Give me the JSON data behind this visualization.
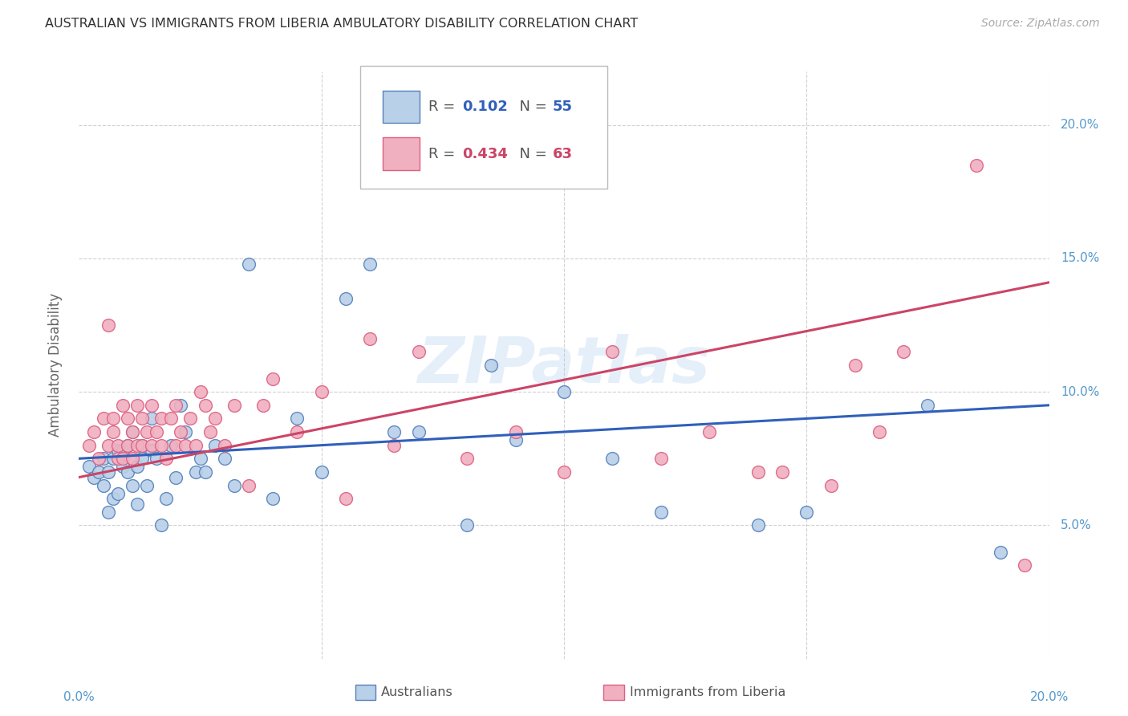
{
  "title": "AUSTRALIAN VS IMMIGRANTS FROM LIBERIA AMBULATORY DISABILITY CORRELATION CHART",
  "source": "Source: ZipAtlas.com",
  "ylabel": "Ambulatory Disability",
  "xlim": [
    0.0,
    20.0
  ],
  "ylim": [
    0.0,
    22.0
  ],
  "watermark": "ZIPatlas",
  "legend_aus_R": "0.102",
  "legend_aus_N": "55",
  "legend_lib_R": "0.434",
  "legend_lib_N": "63",
  "aus_color": "#b8d0e8",
  "aus_edge_color": "#5580bb",
  "lib_color": "#f0b0c0",
  "lib_edge_color": "#dd6080",
  "line_aus_color": "#3060bb",
  "line_lib_color": "#cc4466",
  "background_color": "#ffffff",
  "grid_color": "#cccccc",
  "axis_label_color": "#5599cc",
  "aus_points_x": [
    0.2,
    0.3,
    0.4,
    0.5,
    0.5,
    0.6,
    0.6,
    0.7,
    0.7,
    0.8,
    0.8,
    0.9,
    0.9,
    1.0,
    1.0,
    1.1,
    1.1,
    1.2,
    1.2,
    1.3,
    1.3,
    1.4,
    1.5,
    1.5,
    1.6,
    1.7,
    1.8,
    1.9,
    2.0,
    2.1,
    2.2,
    2.4,
    2.5,
    2.6,
    2.8,
    3.0,
    3.2,
    3.5,
    4.0,
    4.5,
    5.0,
    5.5,
    6.0,
    6.5,
    7.0,
    8.0,
    8.5,
    9.0,
    10.0,
    11.0,
    12.0,
    14.0,
    15.0,
    17.5,
    19.0
  ],
  "aus_points_y": [
    7.2,
    6.8,
    7.0,
    6.5,
    7.5,
    7.0,
    5.5,
    7.5,
    6.0,
    7.8,
    6.2,
    7.2,
    7.8,
    7.0,
    8.0,
    6.5,
    8.5,
    7.2,
    5.8,
    7.5,
    8.0,
    6.5,
    7.8,
    9.0,
    7.5,
    5.0,
    6.0,
    8.0,
    6.8,
    9.5,
    8.5,
    7.0,
    7.5,
    7.0,
    8.0,
    7.5,
    6.5,
    14.8,
    6.0,
    9.0,
    7.0,
    13.5,
    14.8,
    8.5,
    8.5,
    5.0,
    11.0,
    8.2,
    10.0,
    7.5,
    5.5,
    5.0,
    5.5,
    9.5,
    4.0
  ],
  "lib_points_x": [
    0.2,
    0.3,
    0.4,
    0.5,
    0.6,
    0.6,
    0.7,
    0.7,
    0.8,
    0.8,
    0.9,
    0.9,
    1.0,
    1.0,
    1.1,
    1.1,
    1.2,
    1.2,
    1.3,
    1.3,
    1.4,
    1.5,
    1.5,
    1.6,
    1.7,
    1.7,
    1.8,
    1.9,
    2.0,
    2.0,
    2.1,
    2.2,
    2.3,
    2.4,
    2.5,
    2.6,
    2.7,
    2.8,
    3.0,
    3.2,
    3.5,
    3.8,
    4.0,
    4.5,
    5.0,
    5.5,
    6.0,
    6.5,
    7.0,
    8.0,
    9.0,
    10.0,
    11.0,
    12.0,
    13.0,
    14.5,
    15.5,
    16.0,
    16.5,
    17.0,
    18.5,
    19.5,
    14.0
  ],
  "lib_points_y": [
    8.0,
    8.5,
    7.5,
    9.0,
    8.0,
    12.5,
    8.5,
    9.0,
    7.5,
    8.0,
    9.5,
    7.5,
    8.0,
    9.0,
    8.5,
    7.5,
    8.0,
    9.5,
    8.0,
    9.0,
    8.5,
    8.0,
    9.5,
    8.5,
    8.0,
    9.0,
    7.5,
    9.0,
    8.0,
    9.5,
    8.5,
    8.0,
    9.0,
    8.0,
    10.0,
    9.5,
    8.5,
    9.0,
    8.0,
    9.5,
    6.5,
    9.5,
    10.5,
    8.5,
    10.0,
    6.0,
    12.0,
    8.0,
    11.5,
    7.5,
    8.5,
    7.0,
    11.5,
    7.5,
    8.5,
    7.0,
    6.5,
    11.0,
    8.5,
    11.5,
    18.5,
    3.5,
    7.0
  ]
}
